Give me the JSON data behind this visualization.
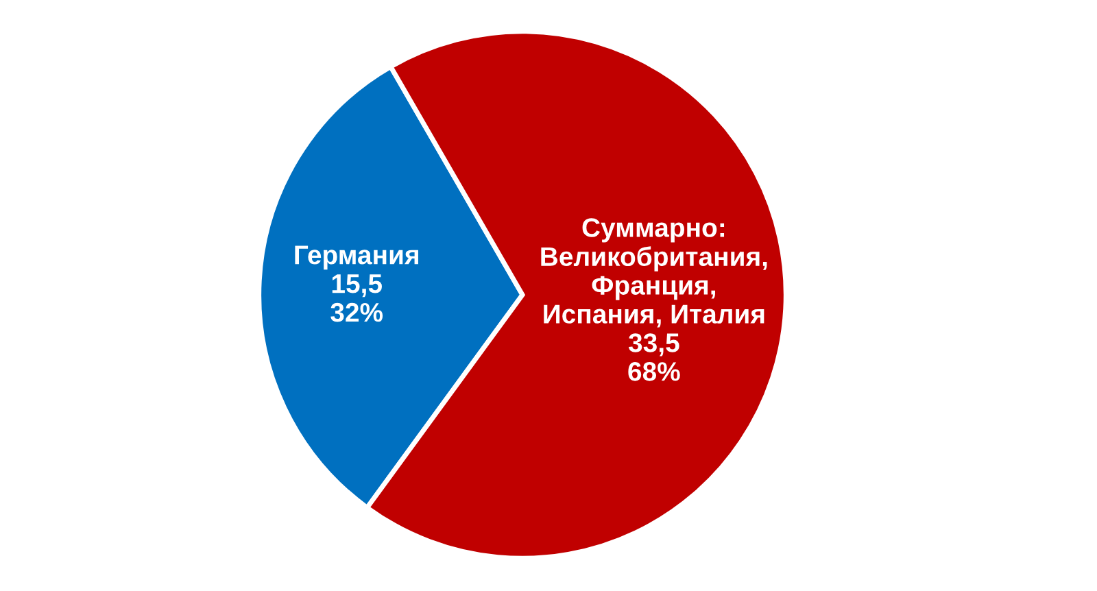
{
  "chart_data": {
    "type": "pie",
    "categories": [
      "Германия",
      "Суммарно:\nВеликобритания,\nФранция,\nИспания, Италия"
    ],
    "values": [
      15.5,
      33.5
    ],
    "value_labels": [
      "15,5\n32%",
      "33,5\n68%"
    ],
    "colors": [
      "#0070c0",
      "#c00000"
    ],
    "legend": false
  }
}
